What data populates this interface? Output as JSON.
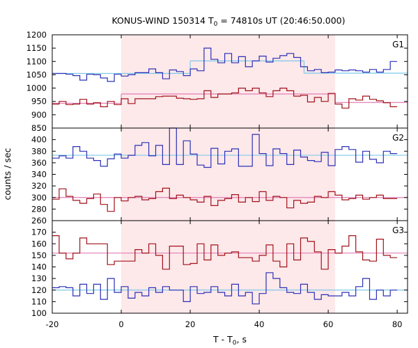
{
  "chart_data": {
    "type": "line",
    "title": {
      "main": "KONUS-WIND 150314 T",
      "sub": "0",
      "rest": " = 74810s UT (20:46:50.000)"
    },
    "xlabel": {
      "main": "T - T",
      "sub": "0",
      "rest": ", s"
    },
    "ylabel": "counts / sec",
    "xlim": [
      -20,
      83
    ],
    "xticks": [
      -20,
      0,
      20,
      40,
      60,
      80
    ],
    "shaded_interval": [
      0,
      62
    ],
    "colors": {
      "blue": "#2b31b5",
      "red": "#a01219",
      "cyan_fit": "#7ec9ea",
      "pink_fit": "#e27fb5",
      "shade": "#fde8ea"
    },
    "step": 2,
    "x_start": -20,
    "panels": [
      {
        "label": "G1",
        "ylim": [
          850,
          1200
        ],
        "yticks": [
          850,
          900,
          950,
          1000,
          1050,
          1100,
          1150,
          1200
        ],
        "series": [
          {
            "color": "blue",
            "values": [
              1055,
              1055,
              1052,
              1047,
              1030,
              1052,
              1050,
              1038,
              1025,
              1052,
              1045,
              1050,
              1058,
              1058,
              1072,
              1058,
              1035,
              1068,
              1062,
              1047,
              1072,
              1065,
              1150,
              1108,
              1095,
              1130,
              1095,
              1118,
              1080,
              1102,
              1120,
              1098,
              1112,
              1122,
              1130,
              1115,
              1080,
              1065,
              1070,
              1058,
              1060,
              1068,
              1065,
              1068,
              1065,
              1060,
              1070,
              1060,
              1070,
              1100
            ]
          },
          {
            "color": "red",
            "values": [
              940,
              950,
              938,
              940,
              958,
              940,
              945,
              930,
              950,
              938,
              960,
              942,
              960,
              960,
              960,
              968,
              970,
              970,
              962,
              960,
              958,
              960,
              990,
              965,
              978,
              978,
              982,
              1000,
              990,
              1000,
              982,
              968,
              990,
              1000,
              990,
              970,
              973,
              948,
              965,
              950,
              980,
              940,
              925,
              960,
              955,
              970,
              958,
              952,
              945,
              930
            ]
          }
        ],
        "fits": [
          {
            "color": "cyan_fit",
            "segments": [
              {
                "x": [
                  -20,
                  20
                ],
                "y": 1055
              },
              {
                "x": [
                  20,
                  53
                ],
                "y": 1102
              },
              {
                "x": [
                  53,
                  83
                ],
                "y": 1056
              }
            ]
          },
          {
            "color": "pink_fit",
            "segments": [
              {
                "x": [
                  -20,
                  0
                ],
                "y": 943
              },
              {
                "x": [
                  0,
                  62
                ],
                "y": 978
              },
              {
                "x": [
                  62,
                  83
                ],
                "y": 946
              }
            ]
          }
        ]
      },
      {
        "label": "G2",
        "ylim": [
          260,
          420
        ],
        "yticks": [
          260,
          280,
          300,
          320,
          340,
          360,
          380,
          400
        ],
        "series": [
          {
            "color": "blue",
            "values": [
              368,
              372,
              368,
              388,
              380,
              368,
              364,
              354,
              367,
              375,
              368,
              373,
              390,
              395,
              372,
              390,
              357,
              424,
              357,
              398,
              375,
              356,
              352,
              385,
              358,
              380,
              384,
              354,
              354,
              409,
              376,
              355,
              384,
              376,
              357,
              382,
              370,
              364,
              362,
              378,
              355,
              383,
              388,
              383,
              361,
              380,
              366,
              360,
              380,
              376
            ]
          },
          {
            "color": "red",
            "values": [
              297,
              315,
              302,
              295,
              290,
              298,
              306,
              288,
              276,
              300,
              294,
              300,
              302,
              296,
              298,
              310,
              316,
              298,
              304,
              300,
              296,
              292,
              302,
              286,
              295,
              298,
              305,
              292,
              300,
              293,
              310,
              295,
              302,
              300,
              282,
              295,
              290,
              292,
              302,
              300,
              310,
              304,
              296,
              298,
              304,
              297,
              300,
              304,
              298,
              298
            ]
          }
        ],
        "fits": [
          {
            "color": "cyan_fit",
            "segments": [
              {
                "x": [
                  -20,
                  83
                ],
                "y": 373
              }
            ]
          },
          {
            "color": "pink_fit",
            "segments": [
              {
                "x": [
                  -20,
                  83
                ],
                "y": 300
              }
            ]
          }
        ]
      },
      {
        "label": "G3",
        "ylim": [
          100,
          180
        ],
        "yticks": [
          100,
          110,
          120,
          130,
          140,
          150,
          160,
          170
        ],
        "series": [
          {
            "color": "red",
            "values": [
              167,
              152,
              147,
              152,
              165,
              160,
              160,
              160,
              142,
              145,
              145,
              145,
              155,
              152,
              160,
              150,
              138,
              158,
              158,
              142,
              143,
              160,
              146,
              159,
              150,
              152,
              153,
              148,
              148,
              145,
              150,
              159,
              145,
              140,
              160,
              146,
              165,
              162,
              153,
              138,
              155,
              152,
              158,
              167,
              153,
              146,
              145,
              164,
              150,
              148
            ]
          },
          {
            "color": "blue",
            "values": [
              122,
              123,
              122,
              115,
              125,
              117,
              125,
              112,
              130,
              118,
              123,
              113,
              118,
              115,
              122,
              118,
              123,
              120,
              120,
              110,
              123,
              117,
              118,
              123,
              118,
              115,
              125,
              115,
              118,
              108,
              117,
              135,
              130,
              122,
              118,
              117,
              125,
              118,
              112,
              116,
              115,
              115,
              118,
              115,
              123,
              130,
              112,
              120,
              115,
              120
            ]
          }
        ],
        "fits": [
          {
            "color": "pink_fit",
            "segments": [
              {
                "x": [
                  -20,
                  83
                ],
                "y": 152
              }
            ]
          },
          {
            "color": "cyan_fit",
            "segments": [
              {
                "x": [
                  -20,
                  83
                ],
                "y": 120
              }
            ]
          }
        ]
      }
    ]
  }
}
